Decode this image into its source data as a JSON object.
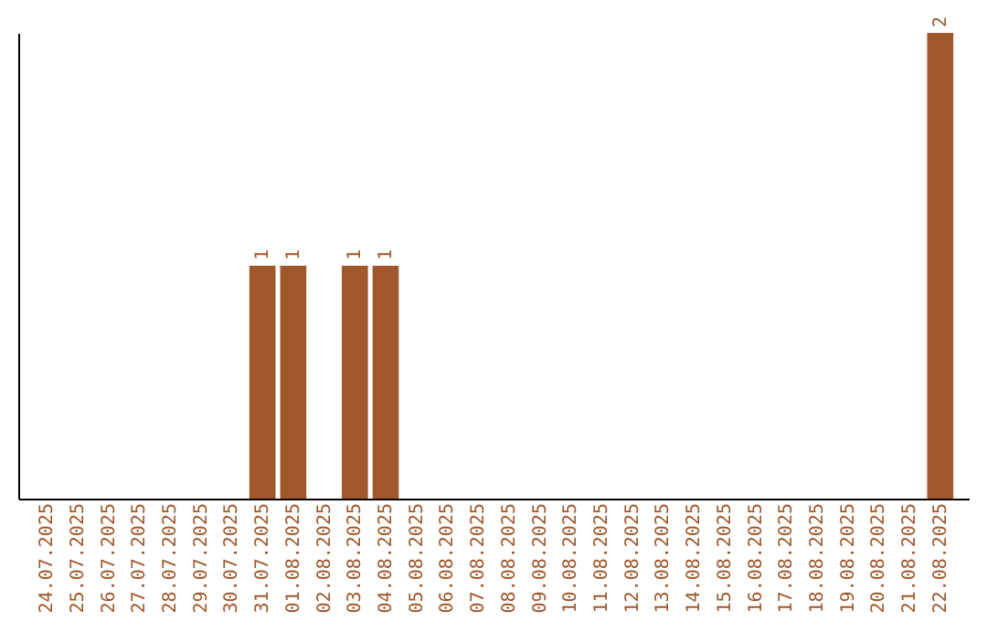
{
  "chart_data": {
    "type": "bar",
    "categories": [
      "24.07.2025",
      "25.07.2025",
      "26.07.2025",
      "27.07.2025",
      "28.07.2025",
      "29.07.2025",
      "30.07.2025",
      "31.07.2025",
      "01.08.2025",
      "02.08.2025",
      "03.08.2025",
      "04.08.2025",
      "05.08.2025",
      "06.08.2025",
      "07.08.2025",
      "08.08.2025",
      "09.08.2025",
      "10.08.2025",
      "11.08.2025",
      "12.08.2025",
      "13.08.2025",
      "14.08.2025",
      "15.08.2025",
      "16.08.2025",
      "17.08.2025",
      "18.08.2025",
      "19.08.2025",
      "20.08.2025",
      "21.08.2025",
      "22.08.2025"
    ],
    "values": [
      0,
      0,
      0,
      0,
      0,
      0,
      0,
      1,
      1,
      0,
      1,
      1,
      0,
      0,
      0,
      0,
      0,
      0,
      0,
      0,
      0,
      0,
      0,
      0,
      0,
      0,
      0,
      0,
      0,
      2
    ],
    "value_labels": [
      null,
      null,
      null,
      null,
      null,
      null,
      null,
      "1",
      "1",
      null,
      "1",
      "1",
      null,
      null,
      null,
      null,
      null,
      null,
      null,
      null,
      null,
      null,
      null,
      null,
      null,
      null,
      null,
      null,
      null,
      "2"
    ],
    "color": "#a0572b",
    "tick_labels": "x",
    "grid": false
  }
}
